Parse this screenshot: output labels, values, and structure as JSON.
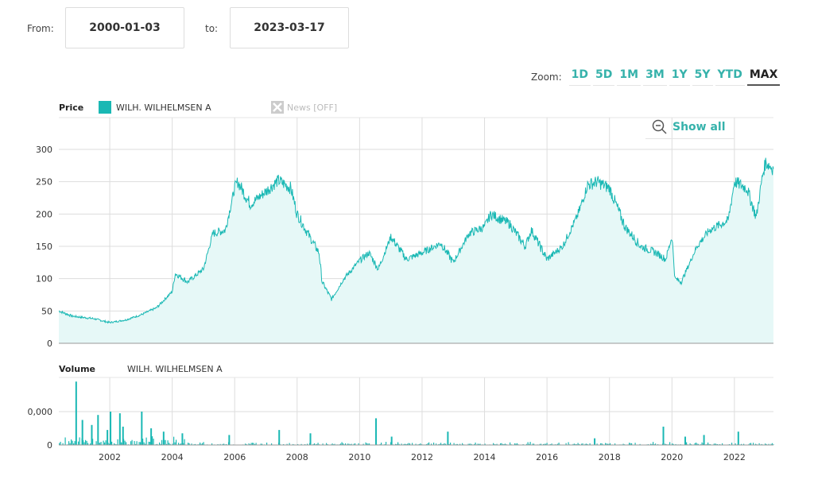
{
  "range": {
    "from_label": "From:",
    "from": "2000-01-03",
    "to_label": "to:",
    "to": "2023-03-17"
  },
  "zoom": {
    "label": "Zoom:",
    "options": [
      "1D",
      "5D",
      "1M",
      "3M",
      "1Y",
      "5Y",
      "YTD",
      "MAX"
    ],
    "active": "MAX"
  },
  "show_all": "Show all",
  "colors": {
    "series": "#1ab8b4",
    "fill": "#e6f8f7",
    "grid": "#dddddd"
  },
  "chart_data": [
    {
      "type": "area",
      "title": "Price",
      "legend": "WILH. WILHELMSEN A",
      "news_toggle": "News [OFF]",
      "ylim": [
        0,
        300
      ],
      "yticks": [
        0,
        50,
        100,
        150,
        200,
        250,
        300
      ],
      "xlim": [
        2000.37,
        2023.25
      ],
      "xticks": [
        2002,
        2004,
        2006,
        2008,
        2010,
        2012,
        2014,
        2016,
        2018,
        2020,
        2022
      ],
      "x": [
        2000.37,
        2000.8,
        2001.5,
        2002,
        2002.5,
        2003,
        2003.5,
        2004,
        2004.1,
        2004.5,
        2005,
        2005.3,
        2005.7,
        2006,
        2006.1,
        2006.5,
        2007,
        2007.4,
        2007.8,
        2008,
        2008.4,
        2008.7,
        2008.8,
        2009.1,
        2009.5,
        2010,
        2010.3,
        2010.6,
        2011,
        2011.5,
        2012,
        2012.6,
        2013,
        2013.5,
        2014,
        2014.2,
        2014.8,
        2015.3,
        2015.5,
        2016,
        2016.5,
        2017,
        2017.3,
        2017.6,
        2018,
        2018.5,
        2019,
        2019.5,
        2019.8,
        2020,
        2020.1,
        2020.3,
        2020.8,
        2021.2,
        2021.8,
        2022,
        2022.4,
        2022.7,
        2022.9,
        2023,
        2023.25
      ],
      "y": [
        50,
        42,
        38,
        32,
        36,
        44,
        55,
        80,
        108,
        95,
        115,
        170,
        175,
        240,
        250,
        215,
        235,
        252,
        240,
        200,
        165,
        140,
        95,
        68,
        100,
        128,
        140,
        115,
        165,
        130,
        140,
        155,
        125,
        170,
        180,
        200,
        185,
        150,
        175,
        130,
        150,
        200,
        245,
        250,
        240,
        180,
        150,
        140,
        130,
        165,
        100,
        95,
        150,
        175,
        190,
        250,
        240,
        195,
        260,
        280,
        270
      ]
    },
    {
      "type": "bar",
      "title": "Volume",
      "legend": "WILH. WILHELMSEN A",
      "yticks": [
        "0",
        "0,000"
      ],
      "spikes_x": [
        2000.9,
        2001.1,
        2001.4,
        2001.6,
        2001.9,
        2002,
        2002.3,
        2002.4,
        2003,
        2003.3,
        2003.7,
        2004.3,
        2005.8,
        2007.4,
        2008.4,
        2010.5,
        2011,
        2012.8,
        2017.5,
        2019.7,
        2020.4,
        2021,
        2022.1
      ],
      "spikes_v": [
        1.9,
        0.75,
        0.6,
        0.9,
        0.45,
        1.0,
        0.95,
        0.55,
        1.0,
        0.5,
        0.4,
        0.35,
        0.3,
        0.45,
        0.35,
        0.8,
        0.25,
        0.4,
        0.2,
        0.55,
        0.25,
        0.3,
        0.4
      ]
    }
  ]
}
